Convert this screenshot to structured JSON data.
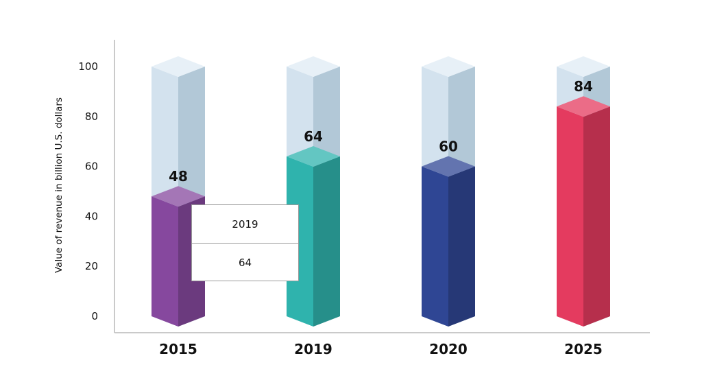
{
  "chart_data": {
    "type": "bar",
    "categories": [
      "2015",
      "2019",
      "2020",
      "2025"
    ],
    "values": [
      48,
      64,
      60,
      84
    ],
    "value_labels": [
      "48",
      "64",
      "60",
      "84"
    ],
    "title": "",
    "xlabel": "",
    "ylabel": "Value of revenue in billion U.S. dollars",
    "ylim": [
      0,
      100
    ],
    "yticks": [
      "0",
      "20",
      "40",
      "60",
      "80",
      "100"
    ],
    "grid": false,
    "legend": "none",
    "bar_colors": [
      "#86489e",
      "#2fb3ad",
      "#2f4694",
      "#e43b5f"
    ]
  },
  "tooltip": {
    "category": "2019",
    "value": "64"
  }
}
